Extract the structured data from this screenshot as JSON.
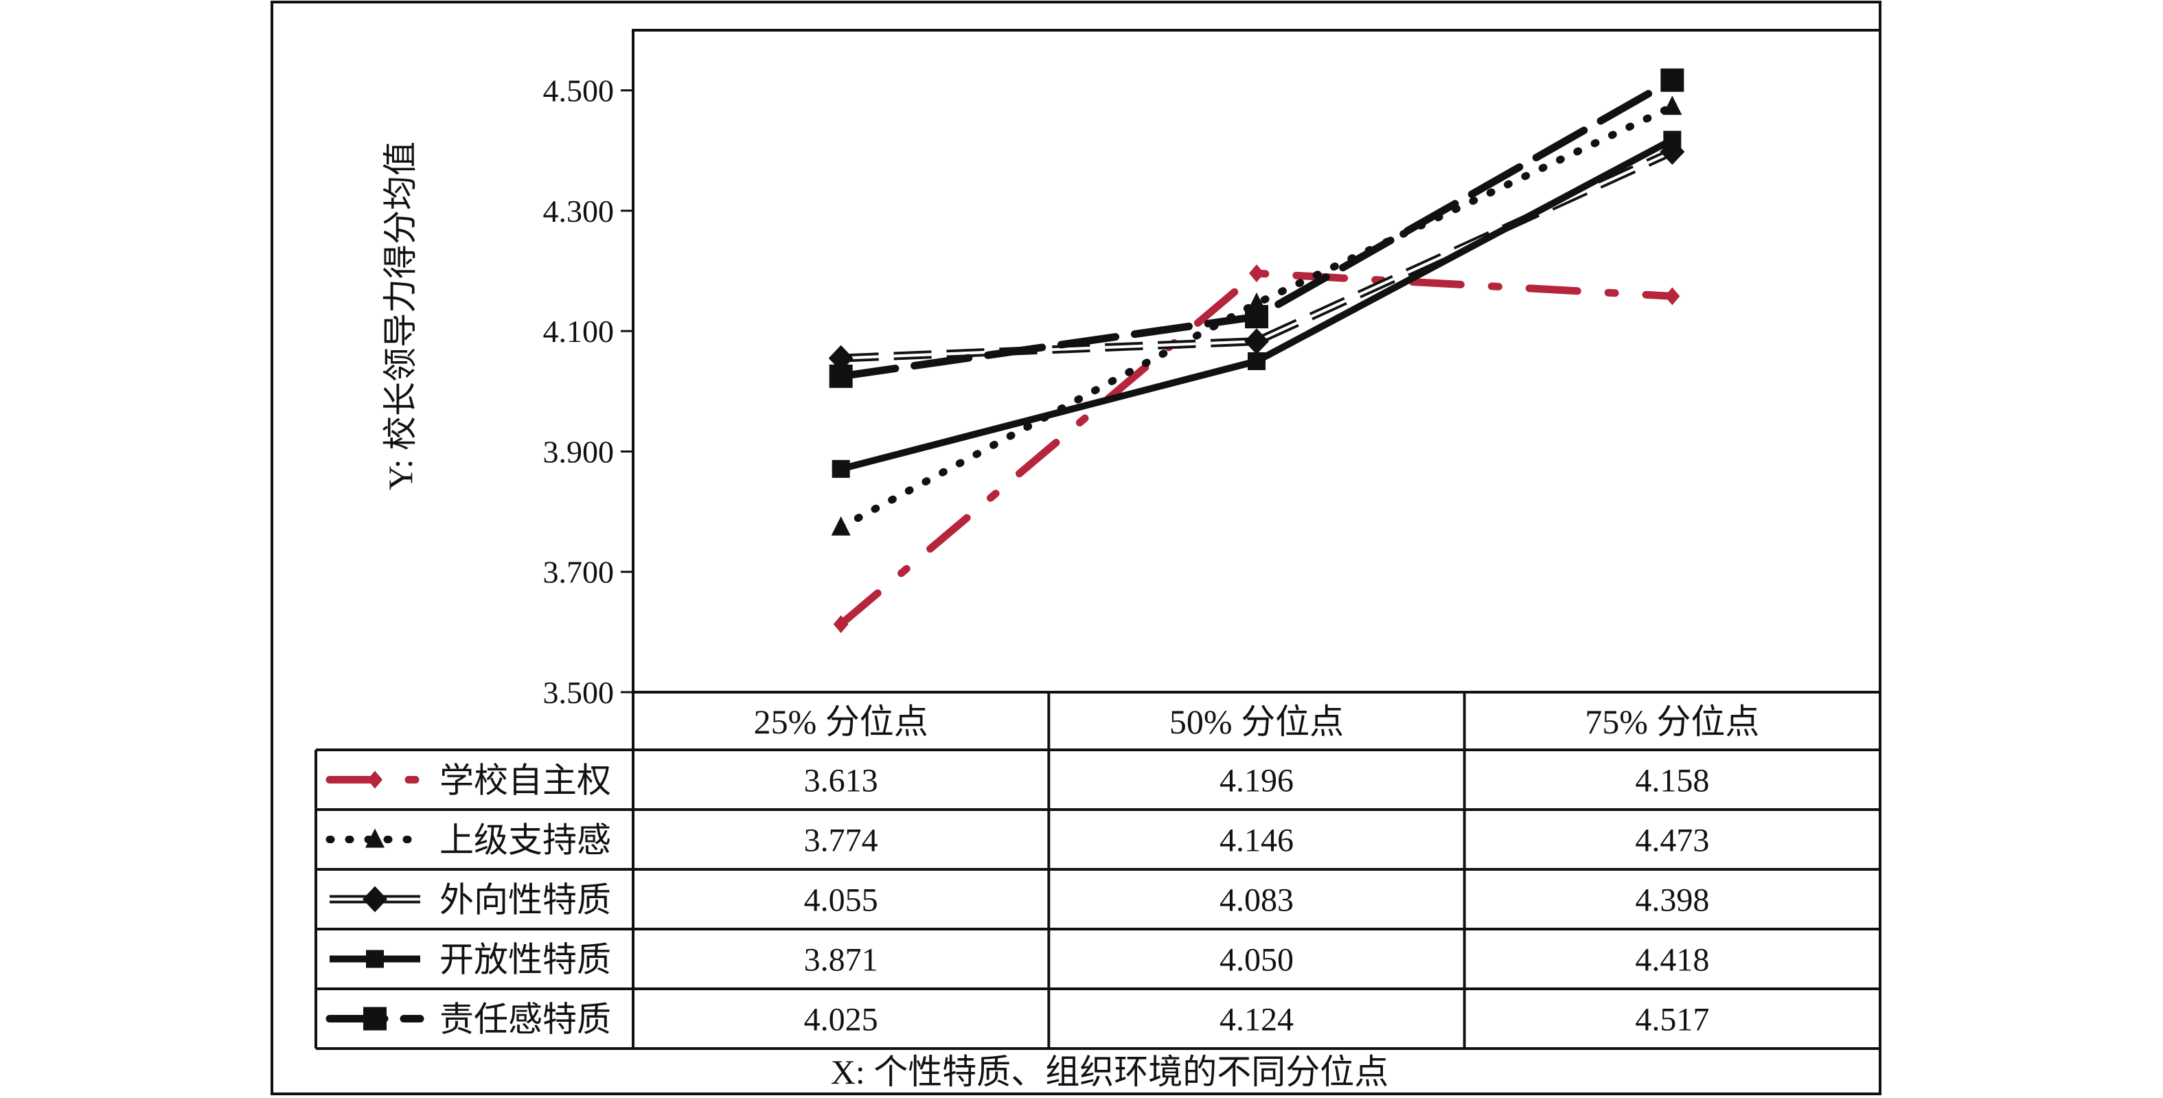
{
  "chart_data": {
    "type": "line",
    "ylabel": "Y: 校长领导力得分均值",
    "xlabel": "X: 个性特质、组织环境的不同分位点",
    "categories": [
      "25% 分位点",
      "50% 分位点",
      "75% 分位点"
    ],
    "ylim": [
      3.5,
      4.6
    ],
    "yticks": [
      "3.500",
      "3.700",
      "3.900",
      "4.100",
      "4.300",
      "4.500"
    ],
    "ytick_values": [
      3.5,
      3.7,
      3.9,
      4.1,
      4.3,
      4.5
    ],
    "series": [
      {
        "name": "学校自主权",
        "values": [
          3.613,
          4.196,
          4.158
        ],
        "labels": [
          "3.613",
          "4.196",
          "4.158"
        ],
        "color": "#b5253c",
        "dash": "dashdot",
        "marker": "diamond-small"
      },
      {
        "name": "上级支持感",
        "values": [
          3.774,
          4.146,
          4.473
        ],
        "labels": [
          "3.774",
          "4.146",
          "4.473"
        ],
        "color": "#111111",
        "dash": "dotted",
        "marker": "triangle"
      },
      {
        "name": "外向性特质",
        "values": [
          4.055,
          4.083,
          4.398
        ],
        "labels": [
          "4.055",
          "4.083",
          "4.398"
        ],
        "color": "#111111",
        "dash": "doubledash",
        "marker": "diamond"
      },
      {
        "name": "开放性特质",
        "values": [
          3.871,
          4.05,
          4.418
        ],
        "labels": [
          "3.871",
          "4.050",
          "4.418"
        ],
        "color": "#111111",
        "dash": "solid",
        "marker": "square-small"
      },
      {
        "name": "责任感特质",
        "values": [
          4.025,
          4.124,
          4.517
        ],
        "labels": [
          "4.025",
          "4.124",
          "4.517"
        ],
        "color": "#111111",
        "dash": "longdash",
        "marker": "square"
      }
    ],
    "grid": false,
    "legend": "table-left"
  }
}
